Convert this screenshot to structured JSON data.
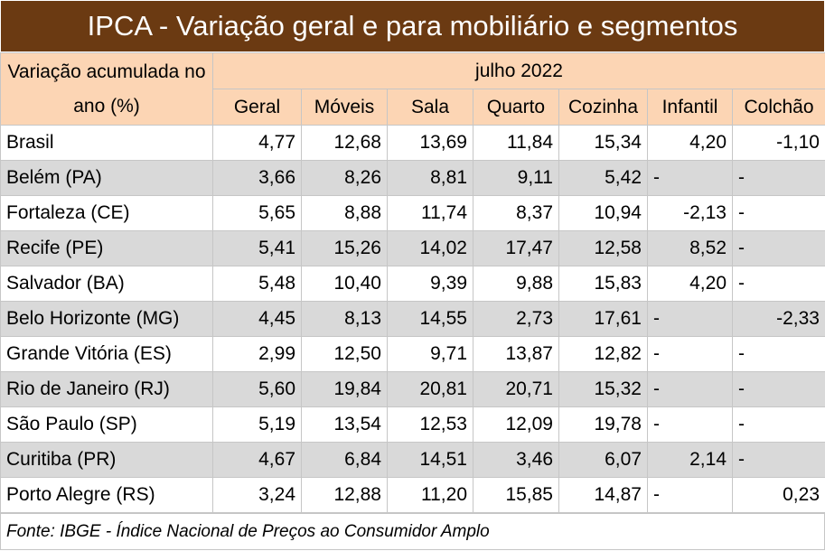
{
  "title": "IPCA - Variação geral e para mobiliário e segmentos",
  "header": {
    "row_label": "Variação acumulada no ano (%)",
    "period": "julho 2022",
    "columns": [
      "Geral",
      "Móveis",
      "Sala",
      "Quarto",
      "Cozinha",
      "Infantil",
      "Colchão"
    ]
  },
  "rows": [
    [
      "Brasil",
      "4,77",
      "12,68",
      "13,69",
      "11,84",
      "15,34",
      "4,20",
      "-1,10"
    ],
    [
      "Belém (PA)",
      "3,66",
      "8,26",
      "8,81",
      "9,11",
      "5,42",
      "-",
      "-"
    ],
    [
      "Fortaleza (CE)",
      "5,65",
      "8,88",
      "11,74",
      "8,37",
      "10,94",
      "-2,13",
      "-"
    ],
    [
      "Recife (PE)",
      "5,41",
      "15,26",
      "14,02",
      "17,47",
      "12,58",
      "8,52",
      "-"
    ],
    [
      "Salvador (BA)",
      "5,48",
      "10,40",
      "9,39",
      "9,88",
      "15,83",
      "4,20",
      "-"
    ],
    [
      "Belo Horizonte (MG)",
      "4,45",
      "8,13",
      "14,55",
      "2,73",
      "17,61",
      "-",
      "-2,33"
    ],
    [
      "Grande Vitória (ES)",
      "2,99",
      "12,50",
      "9,71",
      "13,87",
      "12,82",
      "-",
      "-"
    ],
    [
      "Rio de Janeiro (RJ)",
      "5,60",
      "19,84",
      "20,81",
      "20,71",
      "15,32",
      "-",
      "-"
    ],
    [
      "São Paulo (SP)",
      "5,19",
      "13,54",
      "12,53",
      "12,09",
      "19,78",
      "-",
      "-"
    ],
    [
      "Curitiba (PR)",
      "4,67",
      "6,84",
      "14,51",
      "3,46",
      "6,07",
      "2,14",
      "-"
    ],
    [
      "Porto Alegre (RS)",
      "3,24",
      "12,88",
      "11,20",
      "15,85",
      "14,87",
      "-",
      "0,23"
    ]
  ],
  "source": "Fonte: IBGE - Índice Nacional de Preços ao Consumidor Amplo"
}
